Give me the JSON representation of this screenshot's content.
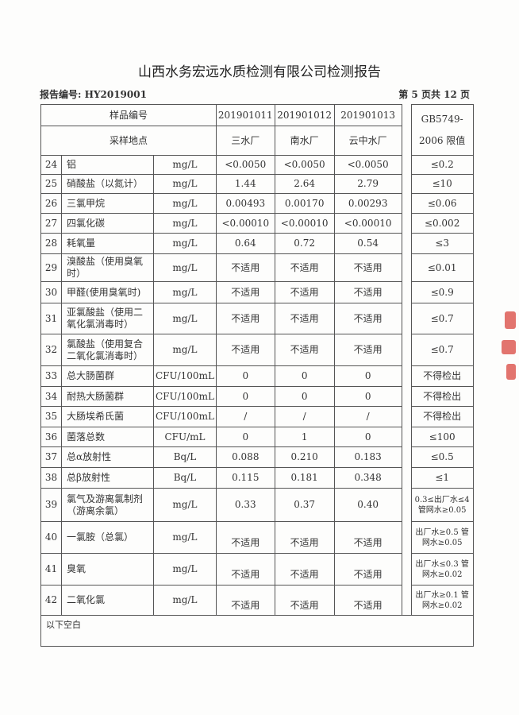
{
  "title": "山西水务宏远水质检测有限公司检测报告",
  "report_no": "报告编号: HY2019001",
  "page_no": "第 5 页共 12 页",
  "header": {
    "sample_no_label": "样品编号",
    "site_label": "采样地点",
    "samples": [
      "201901011",
      "201901012",
      "201901013"
    ],
    "sites": [
      "三水厂",
      "南水厂",
      "云中水厂"
    ],
    "limit_label_1": "GB5749-",
    "limit_label_2": "2006 限值"
  },
  "rows": [
    {
      "no": "24",
      "name": "铝",
      "unit": "mg/L",
      "v": [
        "<0.0050",
        "<0.0050",
        "<0.0050"
      ],
      "limit": "≤0.2"
    },
    {
      "no": "25",
      "name": "硝酸盐（以氮计）",
      "unit": "mg/L",
      "v": [
        "1.44",
        "2.64",
        "2.79"
      ],
      "limit": "≤10"
    },
    {
      "no": "26",
      "name": "三氯甲烷",
      "unit": "mg/L",
      "v": [
        "0.00493",
        "0.00170",
        "0.00293"
      ],
      "limit": "≤0.06"
    },
    {
      "no": "27",
      "name": "四氯化碳",
      "unit": "mg/L",
      "v": [
        "<0.00010",
        "<0.00010",
        "<0.00010"
      ],
      "limit": "≤0.002"
    },
    {
      "no": "28",
      "name": "耗氧量",
      "unit": "mg/L",
      "v": [
        "0.64",
        "0.72",
        "0.54"
      ],
      "limit": "≤3"
    },
    {
      "no": "29",
      "name": "溴酸盐（使用臭氧时）",
      "unit": "mg/L",
      "v": [
        "不适用",
        "不适用",
        "不适用"
      ],
      "limit": "≤0.01"
    },
    {
      "no": "30",
      "name": "甲醛(使用臭氧时)",
      "unit": "mg/L",
      "v": [
        "不适用",
        "不适用",
        "不适用"
      ],
      "limit": "≤0.9"
    },
    {
      "no": "31",
      "name": "亚氯酸盐（使用二氧化氯消毒时）",
      "unit": "mg/L",
      "v": [
        "不适用",
        "不适用",
        "不适用"
      ],
      "limit": "≤0.7"
    },
    {
      "no": "32",
      "name": "氯酸盐（使用复合二氧化氯消毒时）",
      "unit": "mg/L",
      "v": [
        "不适用",
        "不适用",
        "不适用"
      ],
      "limit": "≤0.7"
    },
    {
      "no": "33",
      "name": "总大肠菌群",
      "unit": "CFU/100mL",
      "v": [
        "0",
        "0",
        "0"
      ],
      "limit": "不得检出"
    },
    {
      "no": "34",
      "name": "耐热大肠菌群",
      "unit": "CFU/100mL",
      "v": [
        "0",
        "0",
        "0"
      ],
      "limit": "不得检出"
    },
    {
      "no": "35",
      "name": "大肠埃希氏菌",
      "unit": "CFU/100mL",
      "v": [
        "/",
        "/",
        "/"
      ],
      "limit": "不得检出"
    },
    {
      "no": "36",
      "name": "菌落总数",
      "unit": "CFU/mL",
      "v": [
        "0",
        "1",
        "0"
      ],
      "limit": "≤100"
    },
    {
      "no": "37",
      "name": "总α放射性",
      "unit": "Bq/L",
      "v": [
        "0.088",
        "0.210",
        "0.183"
      ],
      "limit": "≤0.5"
    },
    {
      "no": "38",
      "name": "总β放射性",
      "unit": "Bq/L",
      "v": [
        "0.115",
        "0.181",
        "0.348"
      ],
      "limit": "≤1"
    },
    {
      "no": "39",
      "name": "氯气及游离氯制剂（游离余氯）",
      "unit": "mg/L",
      "v": [
        "0.33",
        "0.37",
        "0.40"
      ],
      "limit": "0.3≤出厂水≤4 管网水≥0.05"
    },
    {
      "no": "40",
      "name": "一氯胺（总氯）",
      "unit": "mg/L",
      "v": [
        "不适用",
        "不适用",
        "不适用"
      ],
      "limit": "出厂水≥0.5 管网水≥0.05"
    },
    {
      "no": "41",
      "name": "臭氧",
      "unit": "mg/L",
      "v": [
        "不适用",
        "不适用",
        "不适用"
      ],
      "limit": "出厂水≤0.3 管网水≥0.02"
    },
    {
      "no": "42",
      "name": "二氧化氯",
      "unit": "mg/L",
      "v": [
        "不适用",
        "不适用",
        "不适用"
      ],
      "limit": "出厂水≥0.1 管网水≥0.02"
    }
  ],
  "footer_note": "以下空白",
  "stamp_color": "#d8453f"
}
